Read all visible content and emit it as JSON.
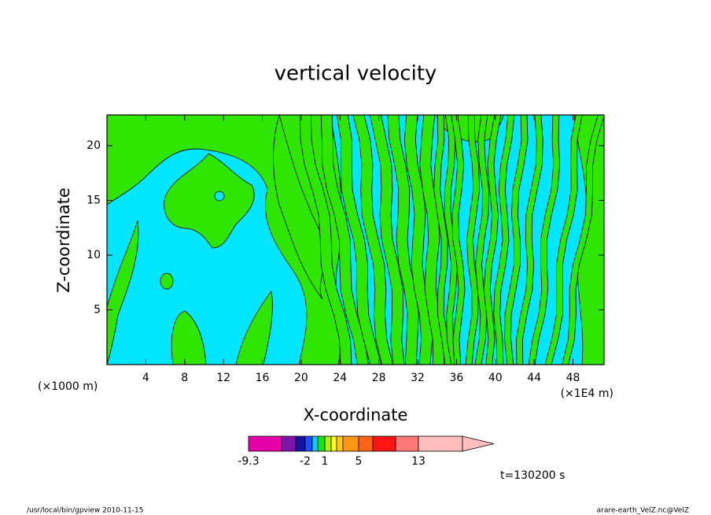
{
  "chart_data": {
    "type": "contour",
    "title": "vertical velocity",
    "xlabel": "X-coordinate",
    "ylabel": "Z-coordinate",
    "xunit": "(×1E4 m)",
    "yunit": "(×1000 m)",
    "xlim": [
      0,
      51.2
    ],
    "ylim": [
      0,
      22.8
    ],
    "xticks": [
      4,
      8,
      12,
      16,
      20,
      24,
      28,
      32,
      36,
      40,
      44,
      48
    ],
    "yticks": [
      5,
      10,
      15,
      20
    ],
    "colorbar": {
      "colors": [
        "#e600a8",
        "#7f14a8",
        "#1414a0",
        "#1e50ff",
        "#14c8ff",
        "#14e614",
        "#b4f000",
        "#ffff14",
        "#ffc814",
        "#ff9614",
        "#ff6414",
        "#ff1414",
        "#ff7878",
        "#ffbebe"
      ],
      "boundaries": [
        -9.3,
        null,
        null,
        -2,
        null,
        null,
        1,
        null,
        null,
        null,
        5,
        null,
        null,
        13,
        null
      ]
    },
    "time_label": "t=130200 s",
    "footer_left": "/usr/local/bin/gpview   2010-11-15",
    "footer_right": "arare-earth_VelZ.nc@VelZ"
  }
}
